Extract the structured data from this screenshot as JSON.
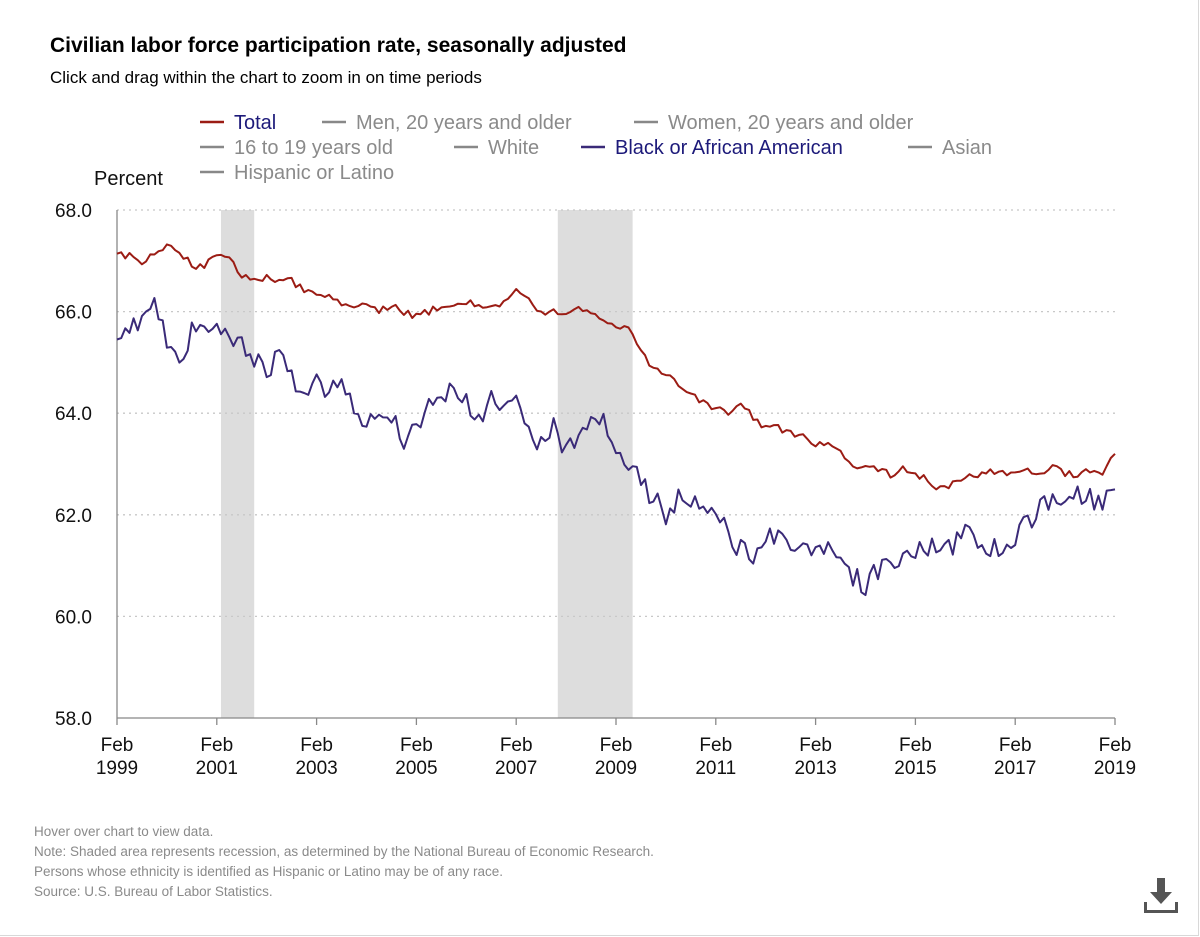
{
  "title": "Civilian labor force participation rate, seasonally adjusted",
  "subtitle": "Click and drag within the chart to zoom in on time periods",
  "footnotes": [
    "Hover over chart to view data.",
    "Note: Shaded area represents recession, as determined by the National Bureau of Economic Research.",
    "Persons whose ethnicity is identified as Hispanic or Latino may be of any race.",
    "Source: U.S. Bureau of Labor Statistics."
  ],
  "download_icon": "download-icon",
  "colors": {
    "total": "#9b1c14",
    "black": "#3a2a78",
    "inactive_legend": "#888888",
    "active_text_total": "#1d1a7a",
    "active_text_black": "#1d1a7a",
    "recession": "#dddddd",
    "grid": "#c8c8c8",
    "axis": "#888888"
  },
  "chart_data": {
    "type": "line",
    "ylabel": "Percent",
    "ylim": [
      58.0,
      68.0
    ],
    "yticks": [
      "68.0",
      "66.0",
      "64.0",
      "62.0",
      "60.0",
      "58.0"
    ],
    "xlim": [
      "1999-02",
      "2019-02"
    ],
    "xticks": [
      {
        "month": "Feb",
        "year": "1999"
      },
      {
        "month": "Feb",
        "year": "2001"
      },
      {
        "month": "Feb",
        "year": "2003"
      },
      {
        "month": "Feb",
        "year": "2005"
      },
      {
        "month": "Feb",
        "year": "2007"
      },
      {
        "month": "Feb",
        "year": "2009"
      },
      {
        "month": "Feb",
        "year": "2011"
      },
      {
        "month": "Feb",
        "year": "2013"
      },
      {
        "month": "Feb",
        "year": "2015"
      },
      {
        "month": "Feb",
        "year": "2017"
      },
      {
        "month": "Feb",
        "year": "2019"
      }
    ],
    "recessions": [
      {
        "start": "2001-03",
        "end": "2001-11"
      },
      {
        "start": "2007-12",
        "end": "2009-06"
      }
    ],
    "legend": [
      {
        "name": "Total",
        "active": true,
        "color": "#9b1c14"
      },
      {
        "name": "Men, 20 years and older",
        "active": false
      },
      {
        "name": "Women, 20 years and older",
        "active": false
      },
      {
        "name": "16 to 19 years old",
        "active": false
      },
      {
        "name": "White",
        "active": false
      },
      {
        "name": "Black or African American",
        "active": true,
        "color": "#3a2a78"
      },
      {
        "name": "Asian",
        "active": false
      },
      {
        "name": "Hispanic or Latino",
        "active": false
      }
    ],
    "series": [
      {
        "name": "Total",
        "color": "#9b1c14",
        "start": "1999-02",
        "step": "quarterly",
        "values": [
          67.1,
          67.1,
          67.0,
          67.1,
          67.3,
          67.2,
          66.9,
          66.9,
          67.1,
          67.1,
          66.7,
          66.6,
          66.7,
          66.6,
          66.6,
          66.4,
          66.3,
          66.3,
          66.1,
          66.1,
          66.1,
          66.0,
          66.1,
          66.0,
          65.9,
          66.0,
          66.1,
          66.1,
          66.2,
          66.1,
          66.1,
          66.2,
          66.4,
          66.2,
          66.0,
          66.0,
          66.0,
          66.1,
          66.0,
          65.8,
          65.7,
          65.7,
          65.2,
          64.9,
          64.8,
          64.6,
          64.4,
          64.2,
          64.1,
          64.0,
          64.2,
          63.9,
          63.7,
          63.7,
          63.6,
          63.6,
          63.4,
          63.4,
          63.2,
          63.0,
          62.9,
          62.9,
          62.8,
          62.9,
          62.8,
          62.7,
          62.5,
          62.6,
          62.7,
          62.8,
          62.9,
          62.8,
          62.9,
          62.9,
          62.8,
          63.0,
          62.8,
          62.8,
          62.9,
          62.8,
          63.2
        ]
      },
      {
        "name": "Black or African American",
        "color": "#3a2a78",
        "start": "1999-02",
        "step": "quarterly",
        "values": [
          65.6,
          65.6,
          65.9,
          66.1,
          65.4,
          65.0,
          65.6,
          65.5,
          65.9,
          65.3,
          65.4,
          65.1,
          64.8,
          65.2,
          64.7,
          64.4,
          64.6,
          64.3,
          64.7,
          64.2,
          63.8,
          63.8,
          64.0,
          63.5,
          63.7,
          64.2,
          64.4,
          64.5,
          64.2,
          63.8,
          64.3,
          64.0,
          64.3,
          63.7,
          63.4,
          63.7,
          63.3,
          63.6,
          63.8,
          63.9,
          63.3,
          62.9,
          62.7,
          62.3,
          62.0,
          62.3,
          62.3,
          62.1,
          62.0,
          61.6,
          61.3,
          61.2,
          61.5,
          61.7,
          61.3,
          61.5,
          61.2,
          61.4,
          61.0,
          60.8,
          60.6,
          60.9,
          61.1,
          61.2,
          61.3,
          61.4,
          61.2,
          61.4,
          61.6,
          61.5,
          61.4,
          61.2,
          61.6,
          61.9,
          62.1,
          62.3,
          62.2,
          62.4,
          62.3,
          62.3,
          62.5
        ]
      }
    ]
  }
}
